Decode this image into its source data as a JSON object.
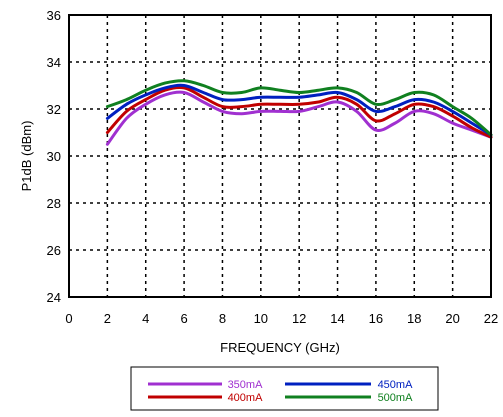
{
  "chart_data": {
    "type": "line",
    "title": "",
    "xlabel": "FREQUENCY (GHz)",
    "ylabel": "P1dB (dBm)",
    "xlim": [
      0,
      22
    ],
    "ylim": [
      24,
      36
    ],
    "x_ticks": [
      0,
      2,
      4,
      6,
      8,
      10,
      12,
      14,
      16,
      18,
      20,
      22
    ],
    "y_ticks": [
      24,
      26,
      28,
      30,
      32,
      34,
      36
    ],
    "grid": "dotted",
    "legend_position": "bottom",
    "series": [
      {
        "name": "350mA",
        "color": "#a030d0",
        "x": [
          2,
          3,
          4,
          5,
          6,
          7,
          8,
          9,
          10,
          11,
          12,
          13,
          14,
          15,
          16,
          17,
          18,
          19,
          20,
          21,
          22
        ],
        "y": [
          30.5,
          31.6,
          32.2,
          32.6,
          32.7,
          32.3,
          31.9,
          31.8,
          31.9,
          31.9,
          31.9,
          32.1,
          32.3,
          31.9,
          31.1,
          31.4,
          31.9,
          31.8,
          31.4,
          31.1,
          30.8
        ]
      },
      {
        "name": "400mA",
        "color": "#c00000",
        "x": [
          2,
          3,
          4,
          5,
          6,
          7,
          8,
          9,
          10,
          11,
          12,
          13,
          14,
          15,
          16,
          17,
          18,
          19,
          20,
          21,
          22
        ],
        "y": [
          31.0,
          31.9,
          32.4,
          32.8,
          32.9,
          32.5,
          32.1,
          32.1,
          32.2,
          32.2,
          32.2,
          32.3,
          32.5,
          32.2,
          31.5,
          31.8,
          32.2,
          32.1,
          31.7,
          31.2,
          30.8
        ]
      },
      {
        "name": "450mA",
        "color": "#0020c0",
        "x": [
          2,
          3,
          4,
          5,
          6,
          7,
          8,
          9,
          10,
          11,
          12,
          13,
          14,
          15,
          16,
          17,
          18,
          19,
          20,
          21,
          22
        ],
        "y": [
          31.6,
          32.2,
          32.6,
          32.9,
          33.0,
          32.7,
          32.4,
          32.4,
          32.5,
          32.5,
          32.5,
          32.6,
          32.7,
          32.4,
          31.9,
          32.1,
          32.4,
          32.3,
          31.9,
          31.4,
          30.9
        ]
      },
      {
        "name": "500mA",
        "color": "#108020",
        "x": [
          2,
          3,
          4,
          5,
          6,
          7,
          8,
          9,
          10,
          11,
          12,
          13,
          14,
          15,
          16,
          17,
          18,
          19,
          20,
          21,
          22
        ],
        "y": [
          32.1,
          32.4,
          32.8,
          33.1,
          33.2,
          33.0,
          32.7,
          32.7,
          32.9,
          32.8,
          32.7,
          32.8,
          32.9,
          32.7,
          32.2,
          32.4,
          32.7,
          32.6,
          32.1,
          31.6,
          30.9
        ]
      }
    ]
  }
}
